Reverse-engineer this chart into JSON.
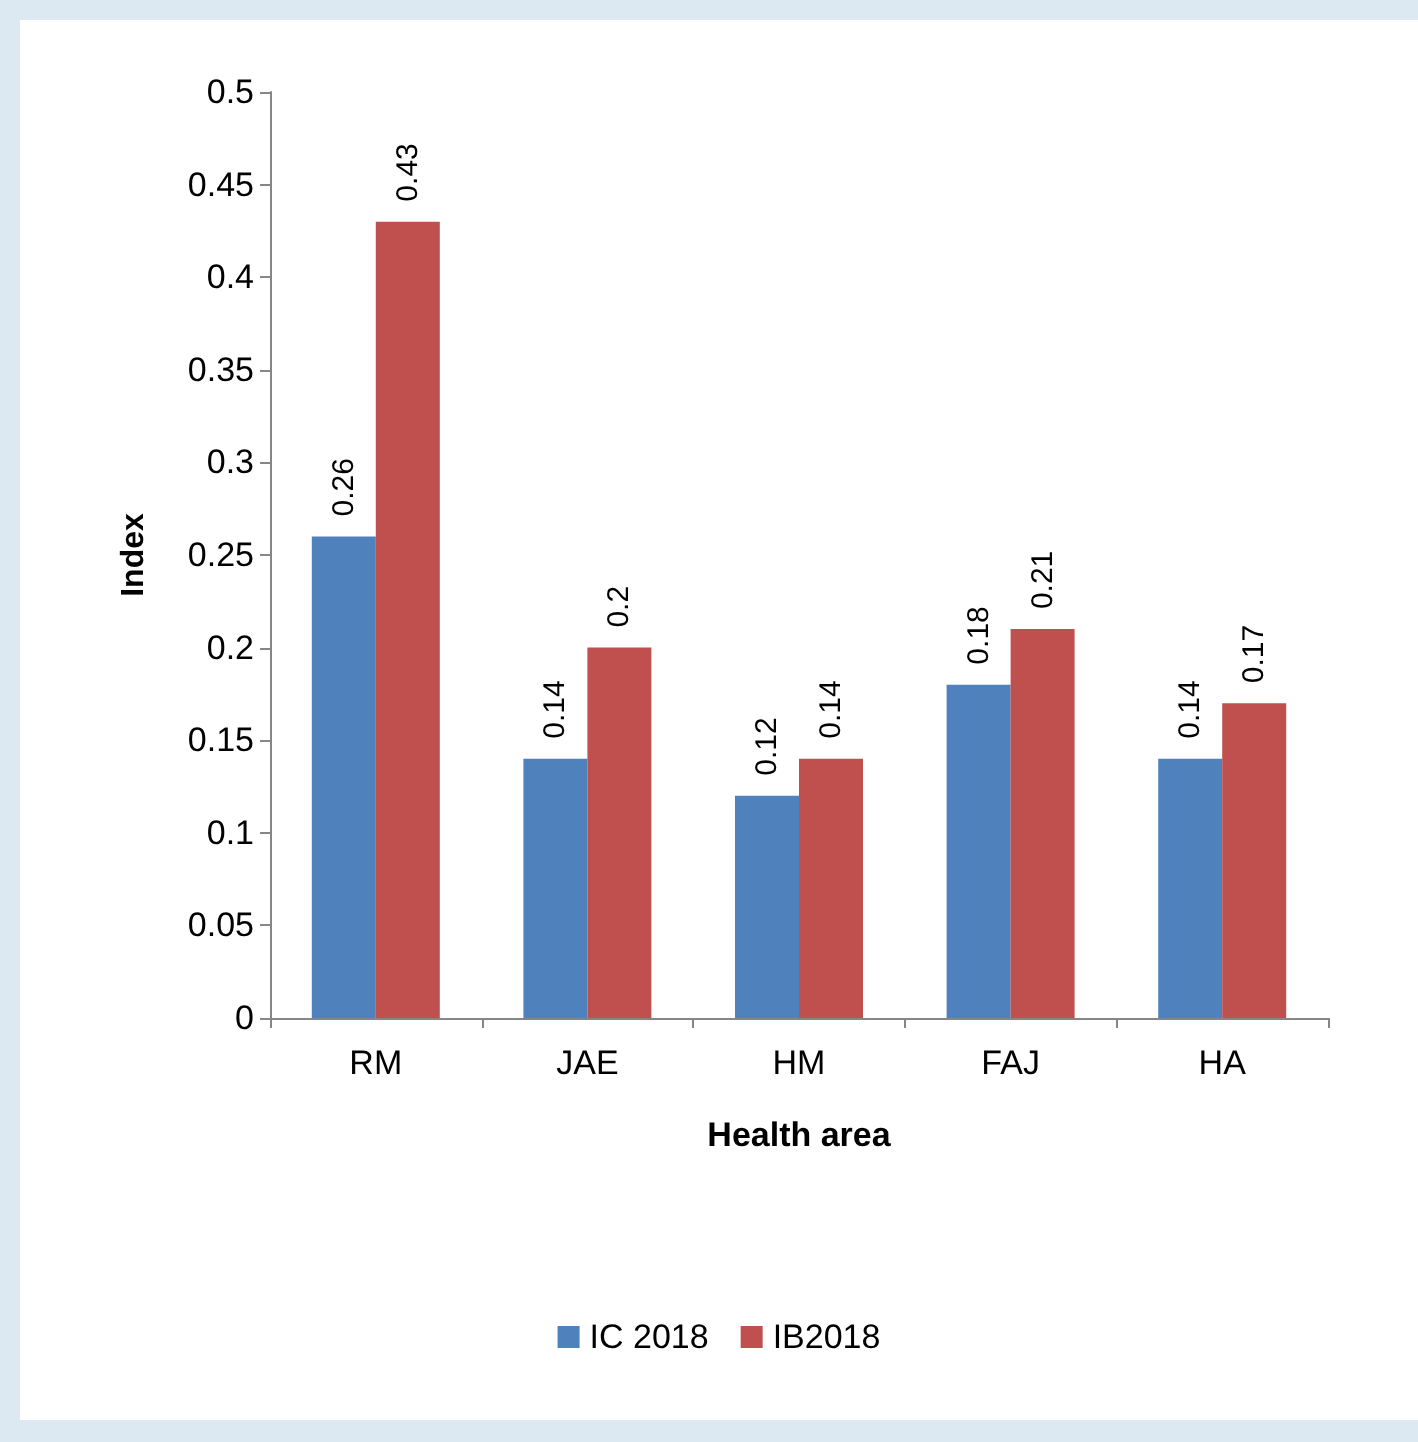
{
  "chart_data": {
    "type": "bar",
    "xlabel": "Health area",
    "ylabel": "Index",
    "categories": [
      "RM",
      "JAE",
      "HM",
      "FAJ",
      "HA"
    ],
    "series": [
      {
        "name": "IC 2018",
        "color": "#4f81bd",
        "values": [
          0.26,
          0.14,
          0.12,
          0.18,
          0.14
        ]
      },
      {
        "name": "IB2018",
        "color": "#c0504d",
        "values": [
          0.43,
          0.2,
          0.14,
          0.21,
          0.17
        ]
      }
    ],
    "ylim": [
      0,
      0.5
    ],
    "yticks": [
      0,
      0.05,
      0.1,
      0.15,
      0.2,
      0.25,
      0.3,
      0.35,
      0.4,
      0.45,
      0.5
    ],
    "grid": false,
    "legend": "bottom",
    "data_labels": true
  }
}
